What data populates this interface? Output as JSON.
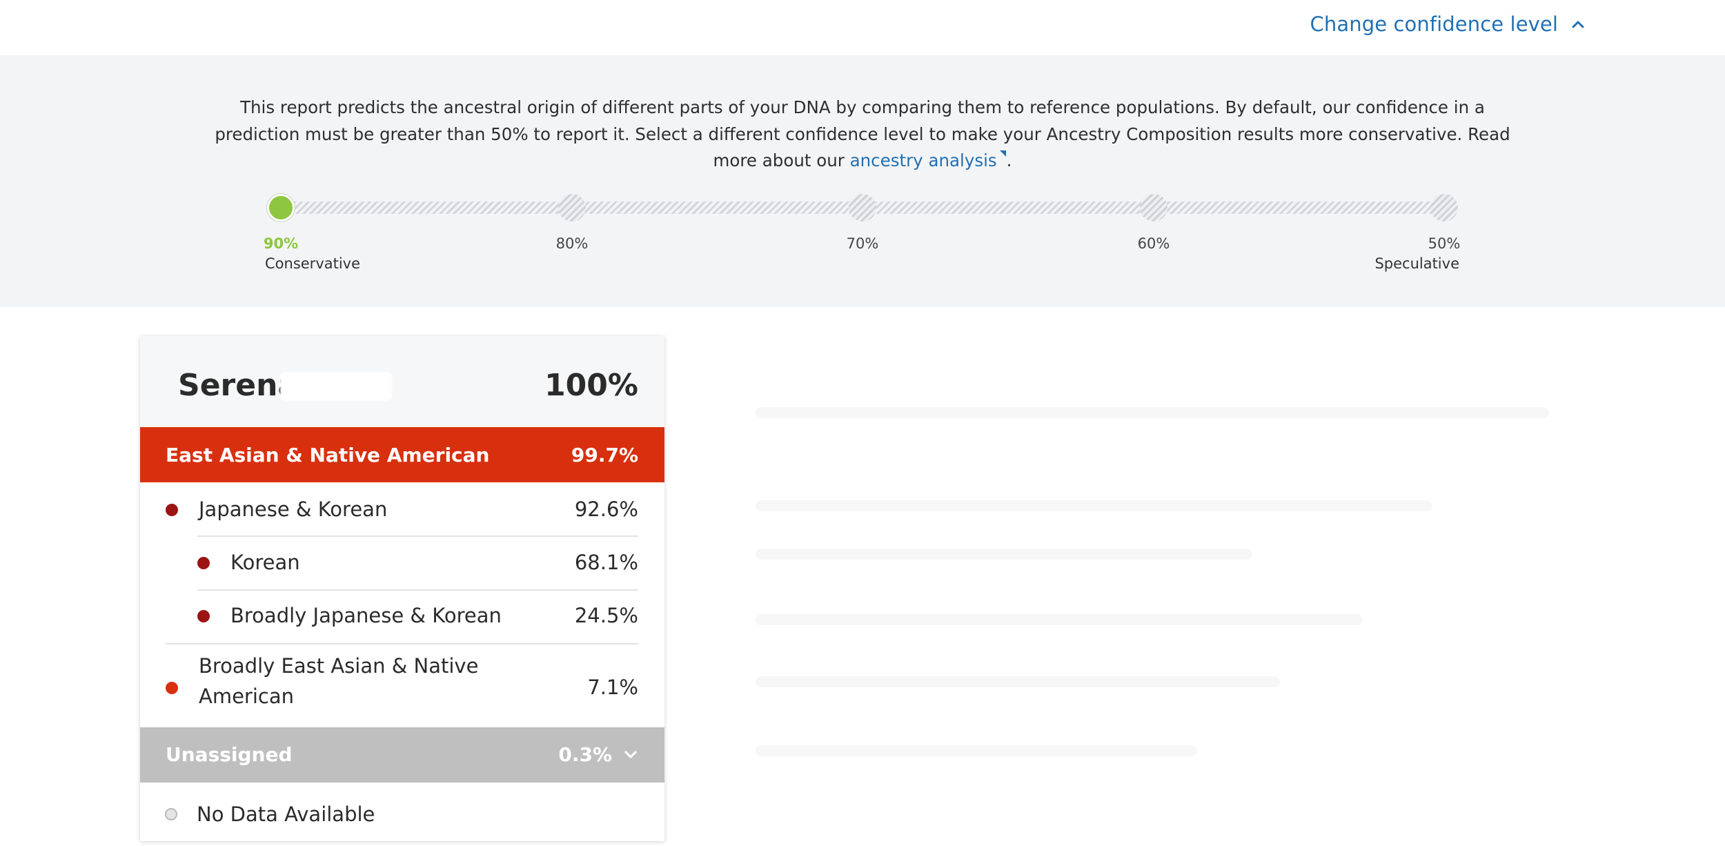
{
  "topbar": {
    "change_level_label": "Change confidence level",
    "icon": "chevron-up-icon"
  },
  "intro": {
    "text_before_link": "This report predicts the ancestral origin of different parts of your DNA by comparing them to reference populations. By default, our confidence in a prediction must be greater than 50% to report it. Select a different confidence level to make your Ancestry Composition results more conservative. Read more about our ",
    "link_text": "ancestry analysis",
    "text_after_link": ".",
    "link_icon": "external-link-icon"
  },
  "confidence": {
    "selected": "90%",
    "stops": [
      {
        "value": "90%",
        "caption": "Conservative",
        "active": true
      },
      {
        "value": "80%",
        "caption": "",
        "active": false
      },
      {
        "value": "70%",
        "caption": "",
        "active": false
      },
      {
        "value": "60%",
        "caption": "",
        "active": false
      },
      {
        "value": "50%",
        "caption": "Speculative",
        "active": false
      }
    ],
    "active_color": "#8dc63f"
  },
  "card": {
    "name": "Serena",
    "total": "100%",
    "region": {
      "label": "East Asian & Native American",
      "value": "99.7%",
      "color": "#d8300f"
    },
    "rows": [
      {
        "label": "Japanese & Korean",
        "value": "92.6%",
        "color": "#9b1413"
      },
      {
        "label": "Korean",
        "value": "68.1%",
        "color": "#9b1413"
      },
      {
        "label": "Broadly Japanese & Korean",
        "value": "24.5%",
        "color": "#9b1413"
      },
      {
        "label": "Broadly East Asian & Native",
        "label_line2": "American",
        "value": "7.1%",
        "color": "#d8300f"
      }
    ],
    "unassigned": {
      "label": "Unassigned",
      "value": "0.3%",
      "icon": "chevron-down-icon",
      "color": "#bfbfbf"
    },
    "nodata": {
      "label": "No Data Available"
    }
  }
}
